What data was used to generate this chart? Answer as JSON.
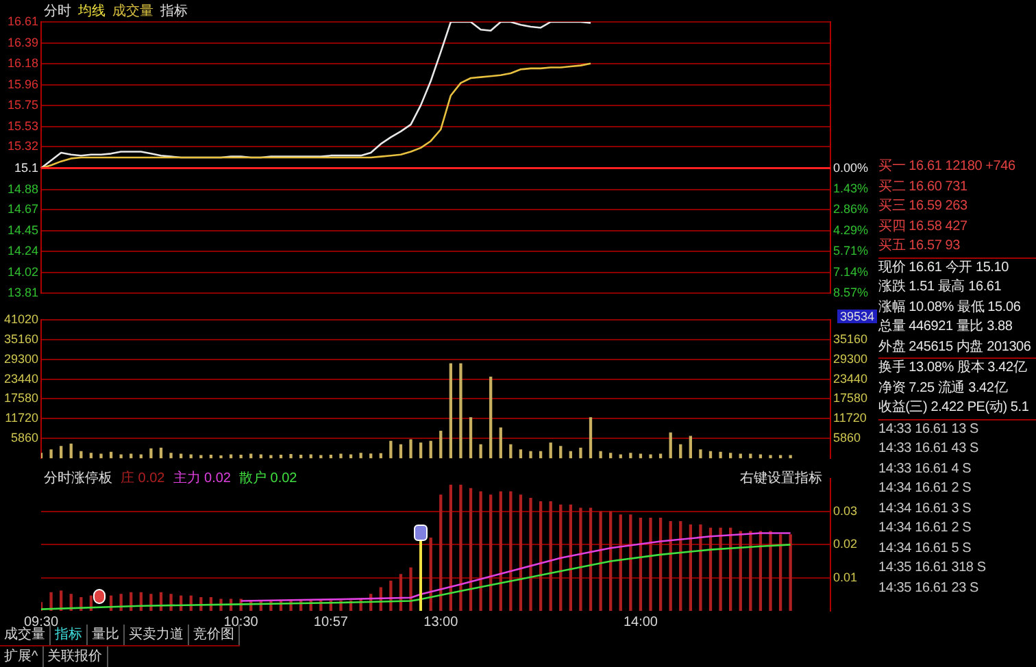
{
  "chart_data": [
    {
      "type": "line",
      "annotations": [
        "分时",
        "均线",
        "成交量",
        "指标"
      ],
      "categories": [
        null,
        null,
        null,
        null,
        null,
        null,
        null,
        null,
        null,
        null,
        null,
        null,
        null,
        null,
        null,
        null,
        null,
        null,
        null,
        null,
        null,
        null,
        null,
        null,
        null,
        null,
        null,
        null,
        null,
        null,
        null,
        null,
        null,
        null,
        null,
        null,
        null,
        null,
        null,
        null,
        null,
        null,
        null,
        null,
        null,
        null,
        null,
        null,
        null,
        null,
        null,
        null,
        null,
        null,
        null,
        null,
        null,
        null,
        null,
        null,
        null,
        null,
        null,
        null,
        null,
        null,
        null,
        null,
        null,
        null,
        null,
        null,
        null,
        null,
        null,
        null,
        null,
        null,
        null,
        null
      ],
      "ylim": [
        13.81,
        16.61
      ],
      "yticks": [
        13.81,
        14.02,
        14.24,
        14.45,
        14.67,
        14.88,
        15.1,
        15.32,
        15.53,
        15.75,
        15.96,
        16.18,
        16.39,
        16.61
      ],
      "y2lim": [
        8.57,
        -10.03
      ],
      "y2ticks": [
        {
          "value": 0,
          "label": "0.00%"
        },
        {
          "value": 1.43,
          "label": "1.43%"
        },
        {
          "value": 2.86,
          "label": "2.86%"
        },
        {
          "value": 4.29,
          "label": "4.29%"
        },
        {
          "value": 5.71,
          "label": "5.71%"
        },
        {
          "value": 7.14,
          "label": "7.14%"
        },
        {
          "value": 8.57,
          "label": "8.57%"
        }
      ],
      "tick_labels": "y",
      "grid": "y",
      "ref_lines": [
        {
          "axis": "y",
          "value": 15.1,
          "color": "#ff2020"
        }
      ],
      "series": [
        {
          "color": "#e8e8e8",
          "values": [
            15.1,
            15.18,
            15.26,
            15.24,
            15.23,
            15.24,
            15.24,
            15.25,
            15.27,
            15.27,
            15.27,
            15.25,
            15.23,
            15.22,
            15.21,
            null,
            null,
            null,
            15.21,
            15.22,
            15.22,
            15.21,
            15.21,
            15.22,
            15.22,
            15.22,
            15.22,
            15.22,
            15.22,
            15.23,
            15.23,
            15.23,
            15.23,
            15.26,
            15.35,
            15.42,
            15.48,
            15.55,
            15.75,
            16.0,
            16.3,
            16.61,
            16.61,
            16.61,
            16.53,
            16.52,
            16.61,
            16.61,
            16.58,
            16.56,
            16.55,
            16.61,
            16.61,
            16.61,
            16.61,
            16.6,
            null,
            null,
            null,
            null,
            null,
            null,
            null,
            null,
            null,
            null,
            null,
            null,
            null,
            null,
            null,
            null,
            null,
            null,
            null,
            null,
            null,
            null,
            null,
            null
          ]
        },
        {
          "color": "#e8c040",
          "values": [
            15.1,
            15.13,
            15.17,
            15.2,
            15.21,
            15.21,
            15.21,
            15.21,
            15.21,
            15.21,
            15.21,
            15.21,
            15.21,
            15.21,
            15.21,
            15.21,
            15.21,
            15.21,
            15.21,
            15.21,
            15.21,
            15.21,
            15.21,
            15.21,
            15.21,
            15.21,
            15.21,
            15.21,
            15.21,
            15.21,
            15.21,
            15.21,
            15.21,
            15.21,
            15.22,
            15.23,
            15.24,
            15.27,
            15.31,
            15.38,
            15.5,
            15.85,
            15.98,
            16.03,
            16.04,
            16.05,
            16.06,
            16.08,
            16.12,
            16.13,
            16.13,
            16.14,
            16.14,
            16.15,
            16.16,
            16.18,
            null,
            null,
            null,
            null,
            null,
            null,
            null,
            null,
            null,
            null,
            null,
            null,
            null,
            null,
            null,
            null,
            null,
            null,
            null,
            null,
            null,
            null,
            null,
            null
          ]
        }
      ]
    },
    {
      "type": "bar",
      "annotations": [
        "39534"
      ],
      "categories": [
        null,
        null,
        null,
        null,
        null,
        null,
        null,
        null,
        null,
        null,
        null,
        null,
        null,
        null,
        null,
        null,
        null,
        null,
        null,
        null,
        null,
        null,
        null,
        null,
        null,
        null,
        null,
        null,
        null,
        null,
        null,
        null,
        null,
        null,
        null,
        null,
        null,
        null,
        null,
        null,
        null,
        null,
        null,
        null,
        null,
        null,
        null,
        null,
        null,
        null,
        null,
        null,
        null,
        null,
        null,
        null,
        null,
        null,
        null,
        null,
        null,
        null,
        null,
        null,
        null,
        null,
        null,
        null,
        null,
        null,
        null,
        null,
        null,
        null,
        null,
        null,
        null,
        null,
        null,
        null
      ],
      "ylim": [
        0,
        41020
      ],
      "yticks": [
        5860,
        11720,
        17580,
        23440,
        29300,
        35160,
        41020
      ],
      "y2lim": [
        0,
        41020
      ],
      "y2ticks": [
        5860,
        11720,
        17580,
        23440,
        29300,
        35160
      ],
      "tick_labels": "y",
      "grid": "y",
      "series": [
        {
          "color": "#c8b060",
          "values": [
            1500,
            2500,
            3500,
            4200,
            2000,
            1500,
            1200,
            1800,
            1000,
            1200,
            1000,
            2800,
            3000,
            1500,
            1200,
            1000,
            800,
            900,
            700,
            1000,
            900,
            1200,
            1000,
            800,
            900,
            1100,
            900,
            1000,
            800,
            900,
            1200,
            1000,
            1500,
            1300,
            1400,
            5000,
            4000,
            5500,
            4500,
            5000,
            8000,
            28000,
            28000,
            12000,
            4000,
            24000,
            9000,
            4000,
            2500,
            2000,
            2000,
            4500,
            3500,
            2000,
            3000,
            12000,
            2000,
            1500,
            1000,
            1500,
            1200,
            1000,
            1200,
            7500,
            4000,
            6500,
            2500,
            2000,
            1800,
            1500,
            1200,
            1200,
            1000,
            800,
            800,
            800,
            null,
            null,
            null,
            null
          ]
        }
      ]
    },
    {
      "type": "bar",
      "title": "分时涨停板",
      "annotations": [
        "右键设置指标"
      ],
      "legend": "top left",
      "categories": [
        "09:30",
        null,
        null,
        null,
        null,
        null,
        null,
        null,
        null,
        null,
        null,
        null,
        null,
        null,
        null,
        null,
        null,
        null,
        null,
        null,
        "10:30",
        null,
        null,
        null,
        null,
        null,
        null,
        null,
        null,
        "10:57",
        null,
        null,
        null,
        null,
        null,
        null,
        null,
        null,
        null,
        null,
        "13:00",
        null,
        null,
        null,
        null,
        null,
        null,
        null,
        null,
        null,
        null,
        null,
        null,
        null,
        null,
        null,
        null,
        null,
        null,
        null,
        "14:00",
        null,
        null,
        null,
        null,
        null,
        null,
        null,
        null,
        null,
        null,
        null,
        null,
        null,
        null,
        null,
        null,
        null,
        null,
        null
      ],
      "y2lim": [
        0,
        0.04
      ],
      "y2ticks": [
        0.01,
        0.02,
        0.03
      ],
      "grid": "y",
      "series": [
        {
          "name": "庄 0.02",
          "color": "#b02020",
          "axis": "y2",
          "values": [
            0.0025,
            0.0055,
            0.006,
            0.005,
            0.004,
            0.0045,
            null,
            0.0045,
            0.005,
            0.0055,
            0.0055,
            0.005,
            0.0055,
            0.005,
            0.0045,
            0.0045,
            0.004,
            0.004,
            0.0035,
            0.0035,
            0.0035,
            0.003,
            0.003,
            0.003,
            0.003,
            0.003,
            0.003,
            0.003,
            0.003,
            0.003,
            0.003,
            0.003,
            0.0035,
            0.005,
            0.007,
            0.009,
            0.011,
            0.013,
            null,
            0.022,
            0.035,
            0.038,
            0.038,
            0.037,
            0.036,
            0.035,
            0.036,
            0.036,
            0.035,
            0.034,
            0.033,
            0.033,
            0.032,
            0.032,
            0.031,
            0.031,
            0.03,
            0.03,
            0.029,
            0.029,
            0.028,
            0.028,
            0.028,
            0.027,
            0.027,
            0.026,
            0.026,
            0.025,
            0.025,
            0.025,
            0.024,
            0.024,
            0.024,
            0.024,
            0.023,
            0.023,
            null,
            null,
            null,
            null
          ]
        },
        {
          "name": "主力 0.02",
          "type": "line",
          "color": "#e040e0",
          "axis": "y2",
          "values": [
            null,
            null,
            null,
            null,
            null,
            null,
            null,
            null,
            null,
            null,
            null,
            null,
            null,
            null,
            null,
            null,
            null,
            null,
            null,
            null,
            0.003,
            null,
            null,
            null,
            null,
            null,
            null,
            null,
            null,
            null,
            0.0035,
            null,
            null,
            null,
            null,
            null,
            null,
            0.004,
            0.005,
            null,
            null,
            null,
            0.008,
            null,
            null,
            null,
            null,
            0.012,
            null,
            null,
            null,
            null,
            0.016,
            null,
            null,
            null,
            null,
            0.019,
            null,
            null,
            null,
            null,
            0.021,
            null,
            null,
            null,
            null,
            0.0225,
            null,
            null,
            null,
            null,
            0.0235,
            null,
            null,
            0.0235,
            null,
            null,
            null,
            null
          ]
        },
        {
          "name": "散户 0.02",
          "type": "line",
          "color": "#40e040",
          "axis": "y2",
          "values": [
            0.0005,
            null,
            null,
            null,
            null,
            null,
            null,
            null,
            null,
            null,
            0.0015,
            null,
            null,
            null,
            null,
            null,
            null,
            null,
            null,
            null,
            0.002,
            null,
            null,
            null,
            null,
            null,
            null,
            null,
            null,
            null,
            0.0025,
            null,
            null,
            null,
            null,
            null,
            null,
            0.003,
            0.0035,
            null,
            null,
            null,
            0.006,
            null,
            null,
            null,
            null,
            0.009,
            null,
            null,
            null,
            null,
            0.012,
            null,
            null,
            null,
            null,
            0.015,
            null,
            null,
            null,
            null,
            0.017,
            null,
            null,
            null,
            null,
            0.0185,
            null,
            null,
            null,
            null,
            0.0195,
            null,
            null,
            0.02,
            null,
            null,
            null,
            null
          ]
        }
      ]
    },
    {
      "type": "other",
      "annotations": [
        "买一  16.61  12180  +746",
        "买二  16.60  731",
        "买三  16.59  263",
        "买四  16.58  427",
        "买五  16.57  93",
        "现价  16.61  今开  15.10",
        "涨跌  1.51  最高  16.61",
        "涨幅  10.08%  最低  15.06",
        "总量  446921  量比  3.88",
        "外盘  245615  内盘  201306",
        "换手  13.08%  股本  3.42亿",
        "净资  7.25  流通  3.42亿",
        "收益(三)  2.422  PE(动)  5.1",
        "14:33  16.61  13  S",
        "14:33  16.61  43  S",
        "14:33  16.61  4  S",
        "14:34  16.61  2  S",
        "14:34  16.61  3  S",
        "14:34  16.61  2  S",
        "14:34  16.61  5  S",
        "14:35  16.61  318  S",
        "14:35  16.61  23  S"
      ]
    },
    {
      "type": "other",
      "annotations": [
        "成交量 指标 量比 买卖力道 竞价图",
        "扩展^ 关联报价"
      ]
    }
  ]
}
